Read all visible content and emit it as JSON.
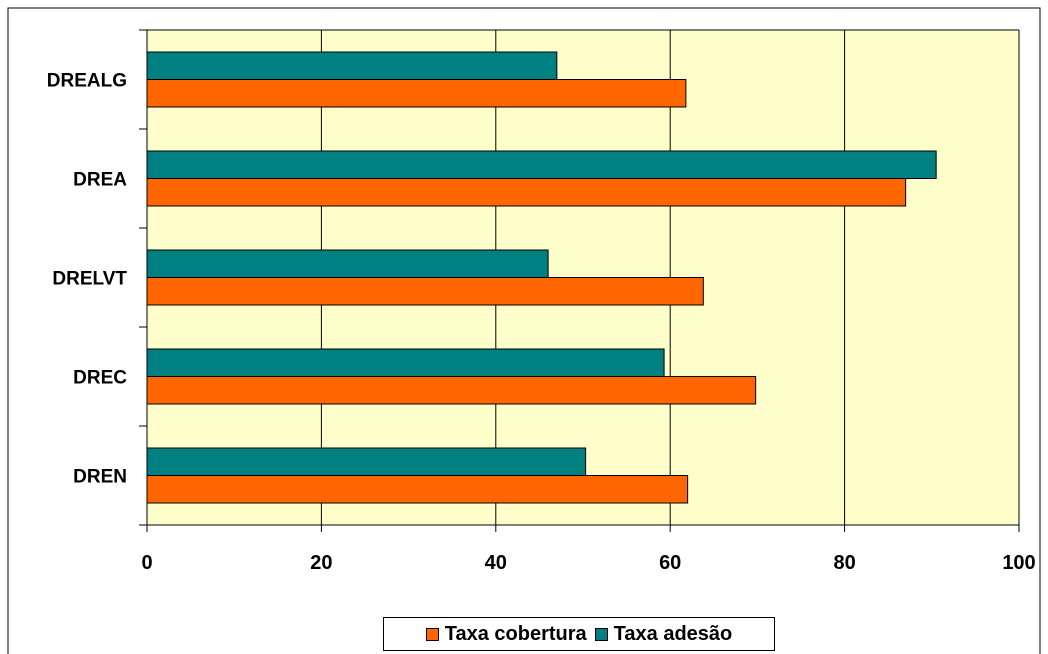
{
  "chart_data": {
    "type": "bar",
    "orientation": "horizontal",
    "categories": [
      "DREALG",
      "DREA",
      "DRELVT",
      "DREC",
      "DREN"
    ],
    "series": [
      {
        "name": "Taxa cobertura",
        "color": "#FF6600",
        "values": [
          61.8,
          87.0,
          63.8,
          69.8,
          62.0
        ]
      },
      {
        "name": "Taxa adesão",
        "color": "#008080",
        "values": [
          47.0,
          90.5,
          46.0,
          59.3,
          50.3
        ]
      }
    ],
    "xlim": [
      0,
      100
    ],
    "xticks": [
      "0",
      "20",
      "40",
      "60",
      "80",
      "100"
    ],
    "grid": true,
    "plot_background": "#FFFFCC",
    "legend_position": "bottom"
  }
}
